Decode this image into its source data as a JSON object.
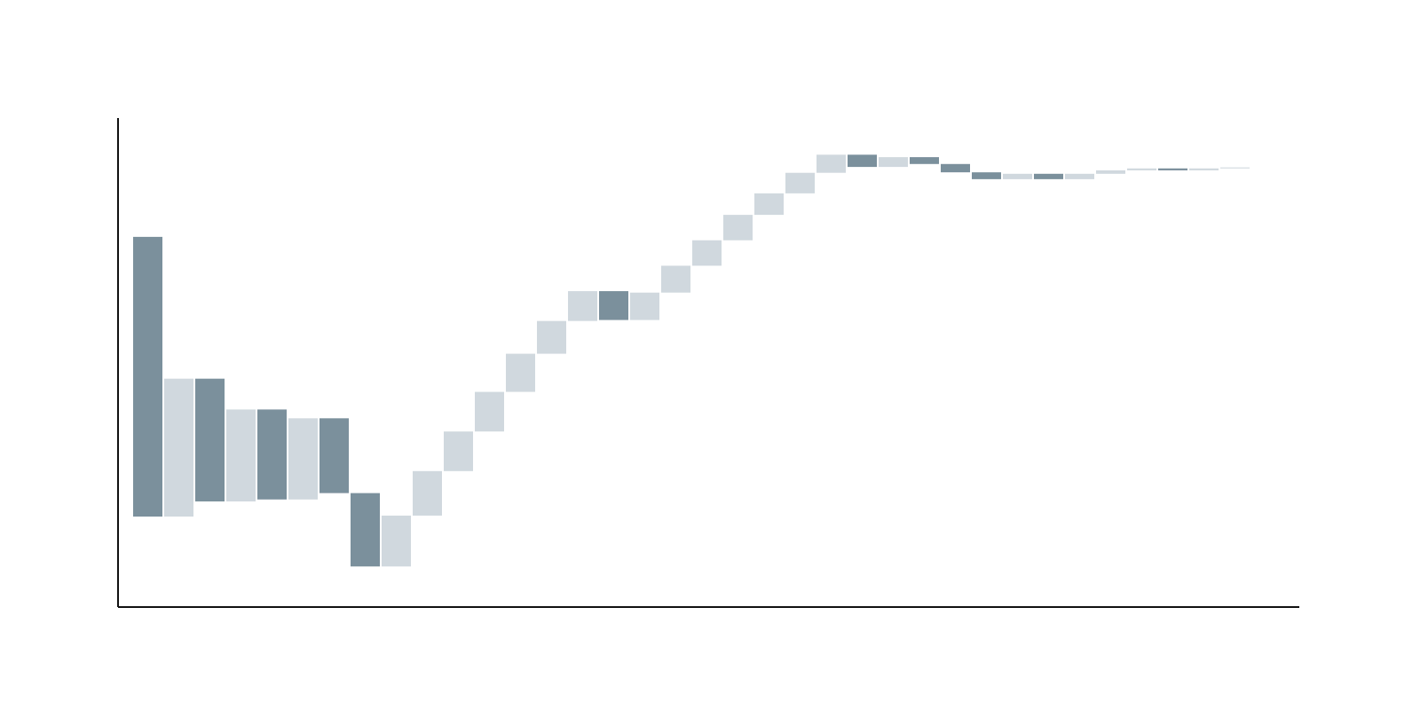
{
  "chart_data": {
    "type": "bar",
    "subtype": "floating-bar",
    "title": "",
    "xlabel": "",
    "ylabel": "",
    "axis_ticks_shown": false,
    "grid": false,
    "legend": "none",
    "ylim": [
      0,
      100
    ],
    "colors": {
      "dark": "#7b909c",
      "light": "#d0d8de",
      "axis": "#111111",
      "background": "#ffffff"
    },
    "series": [
      {
        "name": "",
        "bars": [
          {
            "start": 18.5,
            "end": 75.7,
            "tone": "dark"
          },
          {
            "start": 18.5,
            "end": 46.7,
            "tone": "light"
          },
          {
            "start": 21.6,
            "end": 46.7,
            "tone": "dark"
          },
          {
            "start": 21.6,
            "end": 40.4,
            "tone": "light"
          },
          {
            "start": 22.0,
            "end": 40.4,
            "tone": "dark"
          },
          {
            "start": 22.0,
            "end": 38.6,
            "tone": "light"
          },
          {
            "start": 23.3,
            "end": 38.6,
            "tone": "dark"
          },
          {
            "start": 8.3,
            "end": 23.3,
            "tone": "dark"
          },
          {
            "start": 8.3,
            "end": 18.7,
            "tone": "light"
          },
          {
            "start": 18.7,
            "end": 27.8,
            "tone": "light"
          },
          {
            "start": 27.8,
            "end": 35.9,
            "tone": "light"
          },
          {
            "start": 35.9,
            "end": 44.0,
            "tone": "light"
          },
          {
            "start": 44.0,
            "end": 51.8,
            "tone": "light"
          },
          {
            "start": 51.8,
            "end": 58.5,
            "tone": "light"
          },
          {
            "start": 58.5,
            "end": 64.6,
            "tone": "light"
          },
          {
            "start": 58.7,
            "end": 64.6,
            "tone": "dark"
          },
          {
            "start": 58.7,
            "end": 64.3,
            "tone": "light"
          },
          {
            "start": 64.3,
            "end": 69.8,
            "tone": "light"
          },
          {
            "start": 69.8,
            "end": 75.0,
            "tone": "light"
          },
          {
            "start": 75.0,
            "end": 80.2,
            "tone": "light"
          },
          {
            "start": 80.2,
            "end": 84.6,
            "tone": "light"
          },
          {
            "start": 84.6,
            "end": 88.8,
            "tone": "light"
          },
          {
            "start": 88.8,
            "end": 92.5,
            "tone": "light"
          },
          {
            "start": 90.0,
            "end": 92.5,
            "tone": "dark"
          },
          {
            "start": 90.0,
            "end": 92.0,
            "tone": "light"
          },
          {
            "start": 90.6,
            "end": 92.0,
            "tone": "dark"
          },
          {
            "start": 88.9,
            "end": 90.6,
            "tone": "dark"
          },
          {
            "start": 87.5,
            "end": 88.9,
            "tone": "dark"
          },
          {
            "start": 87.5,
            "end": 88.6,
            "tone": "light"
          },
          {
            "start": 87.5,
            "end": 88.6,
            "tone": "dark"
          },
          {
            "start": 87.5,
            "end": 88.6,
            "tone": "light"
          },
          {
            "start": 88.6,
            "end": 89.3,
            "tone": "light"
          },
          {
            "start": 89.3,
            "end": 89.7,
            "tone": "light"
          },
          {
            "start": 89.3,
            "end": 89.7,
            "tone": "dark"
          },
          {
            "start": 89.3,
            "end": 89.7,
            "tone": "light"
          },
          {
            "start": 89.7,
            "end": 89.9,
            "tone": "light"
          }
        ]
      }
    ]
  }
}
